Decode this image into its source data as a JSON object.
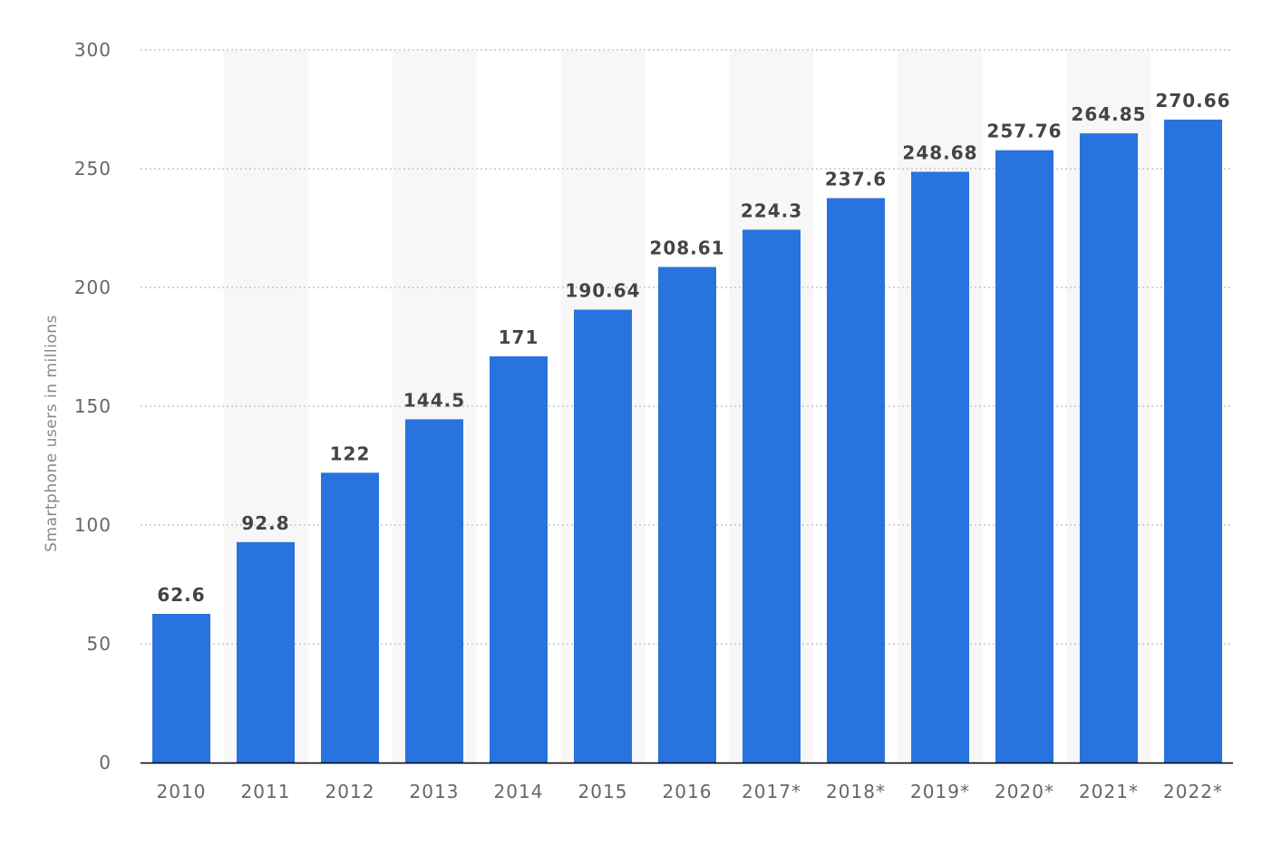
{
  "chart_data": {
    "type": "bar",
    "title": "",
    "xlabel": "",
    "ylabel": "Smartphone users in millions",
    "categories": [
      "2010",
      "2011",
      "2012",
      "2013",
      "2014",
      "2015",
      "2016",
      "2017*",
      "2018*",
      "2019*",
      "2020*",
      "2021*",
      "2022*"
    ],
    "values": [
      62.6,
      92.8,
      122,
      144.5,
      171,
      190.64,
      208.61,
      224.3,
      237.6,
      248.68,
      257.76,
      264.85,
      270.66
    ],
    "data_labels": [
      "62.6",
      "92.8",
      "122",
      "144.5",
      "171",
      "190.64",
      "208.61",
      "224.3",
      "237.6",
      "248.68",
      "257.76",
      "264.85",
      "270.66"
    ],
    "ylim": [
      0,
      300
    ],
    "yticks": [
      0,
      50,
      100,
      150,
      200,
      250,
      300
    ],
    "grid": true,
    "legend": "none",
    "colors": {
      "bar": "#2873dd",
      "band": "#f7f7f7",
      "grid": "#bbbbbb",
      "axis": "#000000"
    }
  }
}
